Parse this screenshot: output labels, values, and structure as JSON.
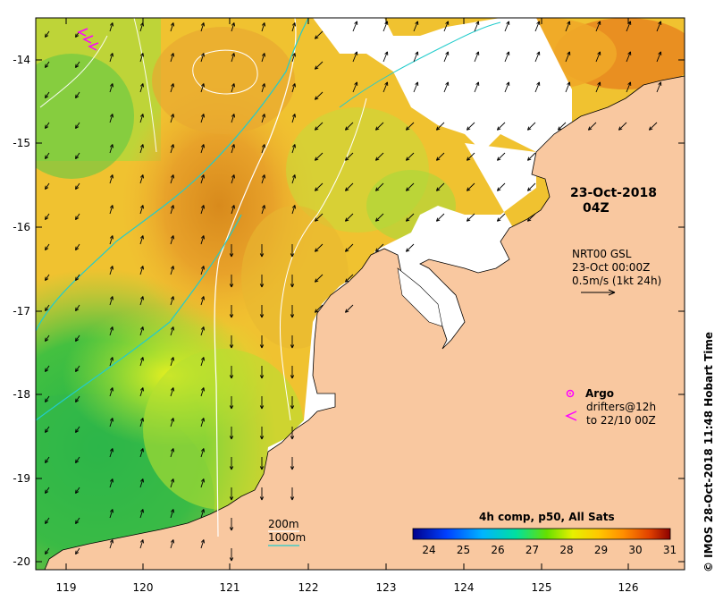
{
  "map": {
    "lon_ticks": [
      "119",
      "120",
      "121",
      "122",
      "123",
      "124",
      "125",
      "126"
    ],
    "lat_ticks": [
      "-14",
      "-15",
      "-16",
      "-17",
      "-18",
      "-19",
      "-20"
    ],
    "date_line1": "23-Oct-2018",
    "date_line2": "04Z",
    "current_info": [
      "NRT00 GSL",
      "23-Oct 00:00Z",
      "0.5m/s (1kt 24h)"
    ],
    "argo_label": "Argo",
    "drifter_label1": "drifters@12h",
    "drifter_label2": "to 22/10 00Z",
    "depth_200": "200m",
    "depth_1000": "1000m",
    "colorbar_title": "4h comp, p50, All Sats",
    "colorbar_ticks": [
      "24",
      "25",
      "26",
      "27",
      "28",
      "29",
      "30",
      "31"
    ],
    "credit": "© IMOS 28-Oct-2018 11:48 Hobart Time"
  },
  "colors": {
    "land": "#f9c8a0",
    "no_data": "#ffffff",
    "depth_200_line": "#ffffff",
    "depth_1000_line": "#22cccc",
    "drifter": "#ff00ff"
  }
}
